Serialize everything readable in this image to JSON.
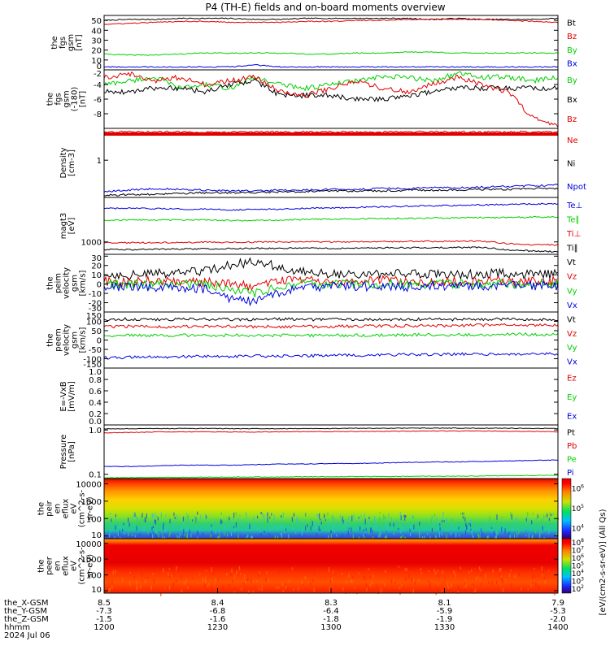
{
  "title": "P4 (TH-E) fields and on-board moments overview",
  "colors": {
    "black": "#000000",
    "red": "#e00000",
    "green": "#00d000",
    "blue": "#0000e0",
    "background": "#ffffff"
  },
  "chart_data": [
    {
      "id": "fgs_gsm_total",
      "type": "line",
      "ylabel_lines": [
        "the",
        "fgs",
        "gsm",
        "[nT]"
      ],
      "ylim": [
        0,
        55
      ],
      "yticks": [
        "0",
        "10",
        "20",
        "30",
        "40",
        "50"
      ],
      "series": [
        {
          "name": "Bt",
          "color": "#000000",
          "values": [
            50,
            51,
            51,
            52,
            52,
            52,
            51,
            51,
            52,
            52,
            52,
            52,
            52,
            51,
            52,
            51,
            51,
            51,
            52
          ]
        },
        {
          "name": "Bz",
          "color": "#e00000",
          "values": [
            46,
            47,
            48,
            49,
            49,
            48,
            48,
            48,
            49,
            49,
            50,
            50,
            51,
            51,
            51,
            51,
            50,
            49,
            48
          ]
        },
        {
          "name": "By",
          "color": "#00d000",
          "values": [
            16,
            15,
            15,
            16,
            17,
            17,
            17,
            17,
            16,
            16,
            17,
            17,
            18,
            18,
            17,
            17,
            17,
            17,
            17
          ]
        },
        {
          "name": "Bx",
          "color": "#0000e0",
          "values": [
            3,
            3,
            3,
            3,
            3,
            3,
            5,
            3,
            3,
            3,
            3,
            3,
            3,
            3,
            3,
            3,
            3,
            3,
            3
          ]
        }
      ]
    },
    {
      "id": "fgs_gsm_detail",
      "type": "line",
      "ylabel_lines": [
        "the",
        "fgs",
        "gsm",
        "(-180)",
        "[nT]"
      ],
      "ylim": [
        -10,
        -2
      ],
      "yticks": [
        "-8",
        "-6",
        "-4",
        "-2"
      ],
      "series": [
        {
          "name": "By",
          "color": "#00d000",
          "values": [
            -4.0,
            -3.5,
            -3.0,
            -4.5,
            -4.0,
            -4.5,
            -3.0,
            -4.0,
            -4.5,
            -4.0,
            -3.5,
            -3.0,
            -3.0,
            -3.5,
            -2.5,
            -3.0,
            -3.0,
            -3.5,
            -3.0
          ]
        },
        {
          "name": "Bx",
          "color": "#000000",
          "values": [
            -5.0,
            -5.0,
            -4.5,
            -4.5,
            -5.0,
            -4.0,
            -3.5,
            -5.5,
            -5.5,
            -5.5,
            -6.0,
            -6.0,
            -5.5,
            -5.0,
            -4.5,
            -4.5,
            -4.5,
            -4.5,
            -4.5
          ]
        },
        {
          "name": "Bz",
          "color": "#e00000",
          "values": [
            -3.0,
            -2.5,
            -3.5,
            -3.0,
            -4.0,
            -3.5,
            -3.0,
            -5.0,
            -5.5,
            -4.5,
            -3.5,
            -4.5,
            -5.0,
            -4.0,
            -3.0,
            -4.0,
            -5.0,
            -8.5,
            -9.5
          ]
        }
      ]
    },
    {
      "id": "density",
      "type": "line",
      "ylabel_lines": [
        "Density",
        "[cm-3]"
      ],
      "log": true,
      "ylim": [
        0.3,
        2.8
      ],
      "yticks": [
        "1"
      ],
      "series": [
        {
          "name": "Ne",
          "color": "#e00000",
          "values": [
            2.5,
            2.5,
            2.5,
            2.5,
            2.5,
            2.5,
            2.5,
            2.5,
            2.5,
            2.5,
            2.5,
            2.5,
            2.5,
            2.5,
            2.5,
            2.5,
            2.5,
            2.5,
            2.5
          ]
        },
        {
          "name": "Ni",
          "color": "#000000",
          "values": [
            0.32,
            0.33,
            0.33,
            0.34,
            0.35,
            0.35,
            0.35,
            0.36,
            0.36,
            0.37,
            0.37,
            0.37,
            0.38,
            0.38,
            0.38,
            0.39,
            0.39,
            0.4,
            0.4
          ]
        },
        {
          "name": "Npot",
          "color": "#0000e0",
          "values": [
            0.36,
            0.38,
            0.4,
            0.39,
            0.38,
            0.37,
            0.37,
            0.38,
            0.38,
            0.39,
            0.39,
            0.4,
            0.4,
            0.41,
            0.41,
            0.42,
            0.43,
            0.44,
            0.45
          ]
        }
      ]
    },
    {
      "id": "temperature",
      "type": "line",
      "ylabel_lines": [
        "magt3",
        "[eV]"
      ],
      "log": true,
      "ylim": [
        500,
        12000
      ],
      "yticks": [
        "1000"
      ],
      "series": [
        {
          "name": "Te⊥",
          "color": "#0000e0",
          "values": [
            6500,
            6500,
            6400,
            6300,
            6200,
            6000,
            6100,
            6300,
            6500,
            6700,
            6900,
            7100,
            7300,
            7500,
            7700,
            7900,
            8100,
            8300,
            8500
          ]
        },
        {
          "name": "Te∥",
          "color": "#00d000",
          "values": [
            3400,
            3400,
            3400,
            3400,
            3400,
            3300,
            3300,
            3400,
            3500,
            3600,
            3600,
            3700,
            3700,
            3800,
            3800,
            3900,
            3900,
            4000,
            4000
          ]
        },
        {
          "name": "Ti⊥",
          "color": "#e00000",
          "values": [
            950,
            950,
            960,
            970,
            980,
            980,
            990,
            1000,
            1000,
            1000,
            1010,
            1020,
            1030,
            1030,
            1040,
            1050,
            900,
            850,
            850
          ]
        },
        {
          "name": "Ti∥",
          "color": "#000000",
          "values": [
            650,
            650,
            660,
            670,
            680,
            690,
            700,
            700,
            700,
            700,
            700,
            720,
            720,
            730,
            730,
            740,
            640,
            600,
            580
          ]
        }
      ]
    },
    {
      "id": "peim_velocity",
      "type": "line",
      "ylabel_lines": [
        "the",
        "peim",
        "velocity",
        "gsm",
        "[km/s]"
      ],
      "ylim": [
        -30,
        32
      ],
      "yticks": [
        "-30",
        "-20",
        "-10",
        "0",
        "10",
        "20",
        "30"
      ],
      "series": [
        {
          "name": "Vt",
          "color": "#000000",
          "values": [
            10,
            10,
            11,
            12,
            14,
            20,
            25,
            18,
            12,
            11,
            10,
            11,
            12,
            11,
            10,
            11,
            12,
            10,
            11
          ]
        },
        {
          "name": "Vz",
          "color": "#e00000",
          "values": [
            3,
            2,
            4,
            3,
            2,
            0,
            -2,
            3,
            5,
            3,
            3,
            4,
            3,
            2,
            3,
            4,
            2,
            3,
            3
          ]
        },
        {
          "name": "Vy",
          "color": "#00d000",
          "values": [
            0,
            0,
            -1,
            0,
            -1,
            -6,
            -10,
            -2,
            0,
            0,
            0,
            0,
            0,
            0,
            0,
            0,
            0,
            0,
            0
          ]
        },
        {
          "name": "Vx",
          "color": "#0000e0",
          "values": [
            -2,
            -3,
            -3,
            -4,
            -5,
            -15,
            -20,
            -8,
            -4,
            -3,
            -2,
            -3,
            -3,
            -2,
            -2,
            -3,
            -2,
            -2,
            -2
          ]
        }
      ]
    },
    {
      "id": "peem_velocity",
      "type": "line",
      "ylabel_lines": [
        "the",
        "peem",
        "velocity",
        "gsm",
        "[km/s]"
      ],
      "ylim": [
        -150,
        150
      ],
      "yticks": [
        "-150",
        "-100",
        "-50",
        "0",
        "50",
        "100",
        "150"
      ],
      "series": [
        {
          "name": "Vt",
          "color": "#000000",
          "values": [
            110,
            112,
            110,
            111,
            112,
            110,
            111,
            112,
            110,
            111,
            112,
            110,
            111,
            112,
            110,
            111,
            112,
            110,
            111
          ]
        },
        {
          "name": "Vz",
          "color": "#e00000",
          "values": [
            72,
            73,
            72,
            71,
            72,
            73,
            72,
            71,
            72,
            73,
            74,
            75,
            76,
            77,
            78,
            79,
            80,
            80,
            80
          ]
        },
        {
          "name": "Vy",
          "color": "#00d000",
          "values": [
            24,
            25,
            24,
            25,
            25,
            26,
            24,
            25,
            25,
            26,
            25,
            26,
            27,
            28,
            28,
            29,
            30,
            30,
            30
          ]
        },
        {
          "name": "Vx",
          "color": "#0000e0",
          "values": [
            -95,
            -92,
            -90,
            -90,
            -88,
            -88,
            -86,
            -85,
            -84,
            -82,
            -82,
            -80,
            -78,
            -78,
            -76,
            -75,
            -75,
            -75,
            -75
          ]
        }
      ]
    },
    {
      "id": "e_field",
      "type": "line",
      "ylabel_lines": [
        "E=-VxB",
        "[mV/m]"
      ],
      "ylim": [
        0,
        1
      ],
      "yticks": [
        "0.0",
        "0.2",
        "0.4",
        "0.6",
        "0.8",
        "1.0"
      ],
      "series": [
        {
          "name": "Ez",
          "color": "#e00000",
          "values": []
        },
        {
          "name": "Ey",
          "color": "#00d000",
          "values": []
        },
        {
          "name": "Ex",
          "color": "#0000e0",
          "values": []
        }
      ]
    },
    {
      "id": "pressure",
      "type": "line",
      "ylabel_lines": [
        "Pressure",
        "[nPa]"
      ],
      "log": true,
      "ylim": [
        0.08,
        1.3
      ],
      "yticks": [
        "0.1",
        "1.0"
      ],
      "series": [
        {
          "name": "Pt",
          "color": "#000000",
          "values": [
            1.06,
            1.07,
            1.08,
            1.08,
            1.08,
            1.07,
            1.07,
            1.07,
            1.08,
            1.08,
            1.09,
            1.09,
            1.1,
            1.1,
            1.1,
            1.1,
            1.09,
            1.09,
            1.08
          ]
        },
        {
          "name": "Pb",
          "color": "#e00000",
          "values": [
            0.86,
            0.88,
            0.9,
            0.91,
            0.91,
            0.9,
            0.9,
            0.91,
            0.92,
            0.92,
            0.93,
            0.93,
            0.94,
            0.95,
            0.95,
            0.95,
            0.94,
            0.93,
            0.91
          ]
        },
        {
          "name": "Pe",
          "color": "#00d000",
          "values": [
            0.083,
            0.084,
            0.085,
            0.085,
            0.086,
            0.086,
            0.087,
            0.087,
            0.088,
            0.088,
            0.089,
            0.089,
            0.09,
            0.09,
            0.091,
            0.092,
            0.093,
            0.094,
            0.095
          ]
        },
        {
          "name": "Pi",
          "color": "#0000e0",
          "values": [
            0.15,
            0.15,
            0.155,
            0.16,
            0.16,
            0.16,
            0.165,
            0.17,
            0.17,
            0.175,
            0.175,
            0.18,
            0.185,
            0.19,
            0.19,
            0.195,
            0.2,
            0.205,
            0.21
          ]
        }
      ]
    },
    {
      "id": "peir_spectrogram",
      "type": "heatmap",
      "ylabel_lines": [
        "the",
        "peir",
        "en",
        "eflux",
        "eV",
        "(cm^2-s-",
        "sr-eV)"
      ],
      "log": true,
      "ylim": [
        7,
        20000
      ],
      "yticks": [
        "10",
        "100",
        "1000",
        "10000"
      ],
      "colorbar": {
        "ticks": [
          "10^4",
          "10^5",
          "10^6"
        ],
        "label": "[eV/(cm2-s-sr-eV)] (All Qs)"
      },
      "bands_top_to_bottom": [
        "red",
        "orange",
        "yellow",
        "yellow-green",
        "green",
        "cyan-green",
        "blue-speckle"
      ]
    },
    {
      "id": "peer_spectrogram",
      "type": "heatmap",
      "ylabel_lines": [
        "the",
        "peer",
        "en",
        "eflux",
        "eV",
        "(cm^2-s-",
        "sr-eV)"
      ],
      "log": true,
      "ylim": [
        7,
        20000
      ],
      "yticks": [
        "10",
        "100",
        "1000",
        "10000"
      ],
      "colorbar": {
        "ticks": [
          "10^2",
          "10^3",
          "10^4",
          "10^5",
          "10^6",
          "10^7",
          "10^8"
        ],
        "label": "[eV/(cm2-s-sr-eV)] (All Qs)"
      },
      "bands_top_to_bottom": [
        "yellow",
        "red",
        "red",
        "red-orange",
        "orange",
        "orange-red"
      ]
    }
  ],
  "xaxis": {
    "rows": [
      {
        "label": "the_X-GSM",
        "values": [
          "8.5",
          "8.4",
          "8.3",
          "8.1",
          "7.9"
        ]
      },
      {
        "label": "the_Y-GSM",
        "values": [
          "-7.3",
          "-6.8",
          "-6.4",
          "-5.9",
          "-5.3"
        ]
      },
      {
        "label": "the_Z-GSM",
        "values": [
          "-1.5",
          "-1.6",
          "-1.8",
          "-1.9",
          "-2.0"
        ]
      },
      {
        "label": "hhmm",
        "values": [
          "1200",
          "1230",
          "1300",
          "1330",
          "1400"
        ]
      }
    ],
    "date": "2024 Jul 06"
  }
}
